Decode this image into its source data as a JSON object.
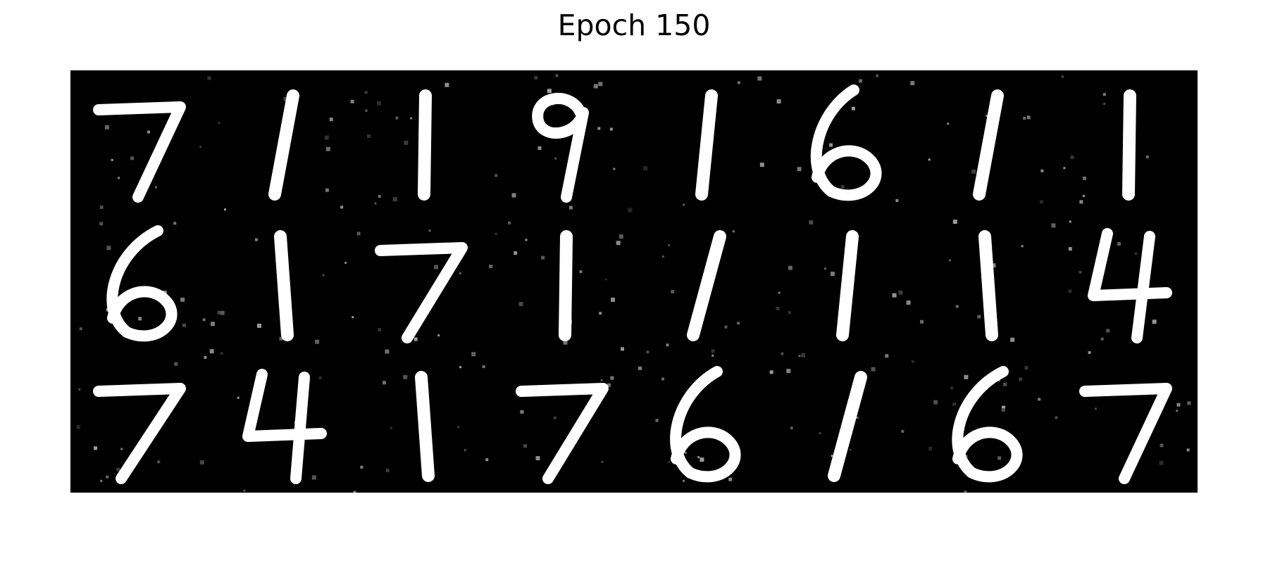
{
  "title": "Epoch 150",
  "grid": {
    "rows": 3,
    "cols": 8,
    "background": "#000000",
    "foreground": "#ffffff",
    "noise": "#5a5a5a",
    "digits": [
      [
        "7",
        "1",
        "1",
        "9",
        "1",
        "6",
        "1",
        "1"
      ],
      [
        "6",
        "1",
        "7",
        "1",
        "1",
        "1",
        "1",
        "4"
      ],
      [
        "7",
        "4",
        "1",
        "7",
        "6",
        "1",
        "6",
        "7"
      ]
    ]
  }
}
